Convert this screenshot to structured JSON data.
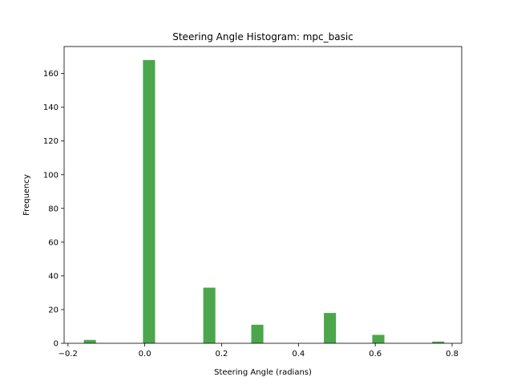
{
  "chart_data": {
    "type": "bar",
    "title": "Steering Angle Histogram: mpc_basic",
    "xlabel": "Steering Angle (radians)",
    "ylabel": "Frequency",
    "xlim": [
      -0.21,
      0.825
    ],
    "ylim": [
      0,
      176
    ],
    "xticks": [
      -0.2,
      0.0,
      0.2,
      0.4,
      0.6,
      0.8
    ],
    "xtick_labels": [
      "−0.2",
      "0.0",
      "0.2",
      "0.4",
      "0.6",
      "0.8"
    ],
    "yticks": [
      0,
      20,
      40,
      60,
      80,
      100,
      120,
      140,
      160
    ],
    "ytick_labels": [
      "0",
      "20",
      "40",
      "60",
      "80",
      "100",
      "120",
      "140",
      "160"
    ],
    "bar_color": "#4ca64c",
    "bar_width": 0.0315,
    "grid": false,
    "bars": [
      {
        "x": -0.143,
        "value": 2
      },
      {
        "x": 0.011,
        "value": 168
      },
      {
        "x": 0.168,
        "value": 33
      },
      {
        "x": 0.293,
        "value": 11
      },
      {
        "x": 0.482,
        "value": 18
      },
      {
        "x": 0.608,
        "value": 5
      },
      {
        "x": 0.764,
        "value": 1
      }
    ]
  }
}
